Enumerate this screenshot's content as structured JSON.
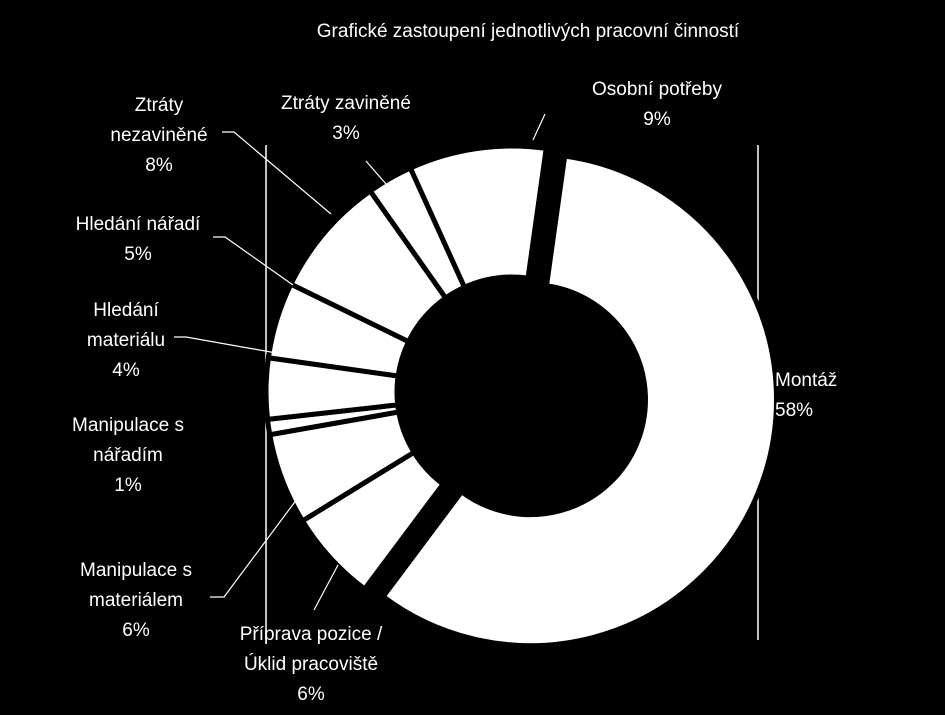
{
  "chart_data": {
    "type": "pie",
    "variant": "donut-exploded",
    "title": "Grafické zastoupení jednotlivých pracovní činností",
    "background": "#000000",
    "slice_color": "#ffffff",
    "separator_color": "#000000",
    "plot_frame_color": "#ffffff",
    "start_angle_deg": 8,
    "slices": [
      {
        "name": "Montáž",
        "value": 58,
        "label_lines": [
          "Montáž",
          "58%"
        ]
      },
      {
        "name": "Příprava pozice / Úklid pracoviště",
        "value": 6,
        "label_lines": [
          "Příprava pozice /",
          "Úklid pracoviště",
          "6%"
        ]
      },
      {
        "name": "Manipulace s materiálem",
        "value": 6,
        "label_lines": [
          "Manipulace s",
          "materiálem",
          "6%"
        ]
      },
      {
        "name": "Manipulace s nářadím",
        "value": 1,
        "label_lines": [
          "Manipulace s",
          "nářadím",
          "1%"
        ]
      },
      {
        "name": "Hledání materiálu",
        "value": 4,
        "label_lines": [
          "Hledání",
          "materiálu",
          "4%"
        ]
      },
      {
        "name": "Hledání nářadí",
        "value": 5,
        "label_lines": [
          "Hledání nářadí",
          "5%"
        ]
      },
      {
        "name": "Ztráty nezaviněné",
        "value": 8,
        "label_lines": [
          "Ztráty",
          "nezaviněné",
          "8%"
        ]
      },
      {
        "name": "Ztráty zaviněné",
        "value": 3,
        "label_lines": [
          "Ztráty zaviněné",
          "3%"
        ]
      },
      {
        "name": "Osobní potřeby",
        "value": 9,
        "label_lines": [
          "Osobní potřeby",
          "9%"
        ]
      }
    ]
  }
}
